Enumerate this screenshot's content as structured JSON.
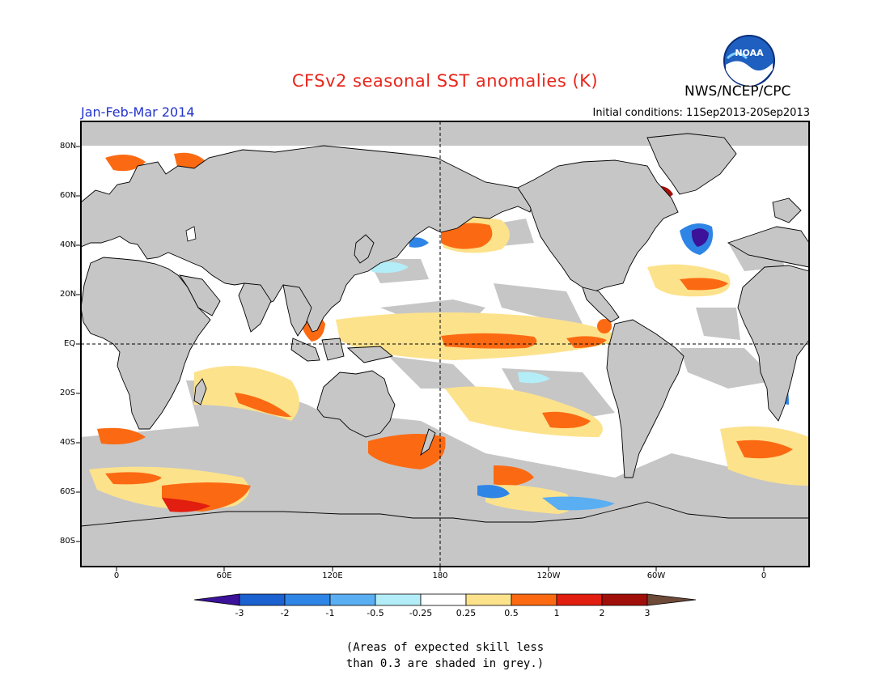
{
  "header": {
    "title": "CFSv2 seasonal SST anomalies (K)",
    "organization": "NWS/NCEP/CPC",
    "logo_text": "NOAA",
    "period": "Jan-Feb-Mar 2014",
    "initial_conditions": "Initial conditions: 11Sep2013-20Sep2013"
  },
  "map": {
    "lat_labels": [
      "80N",
      "60N",
      "40N",
      "20N",
      "EQ",
      "20S",
      "40S",
      "60S",
      "80S"
    ],
    "lon_labels": [
      "0",
      "60E",
      "120E",
      "180",
      "120W",
      "60W",
      "0"
    ],
    "colors": {
      "land": "#c6c6c6",
      "ocean": "#ffffff",
      "low_skill": "#c6c6c6",
      "coast": "#000000"
    }
  },
  "colorbar": {
    "tick_labels": [
      "-3",
      "-2",
      "-1",
      "-0.5",
      "-0.25",
      "0.25",
      "0.5",
      "1",
      "2",
      "3"
    ],
    "colors": [
      "#3b1299",
      "#1b61cf",
      "#2f85e6",
      "#5aaef2",
      "#b3eef8",
      "#ffffff",
      "#fde28c",
      "#fb6a12",
      "#e11e0f",
      "#a10f0a",
      "#6e4a38"
    ]
  },
  "footnote": {
    "line1": "(Areas of expected skill less",
    "line2": "than 0.3 are shaded in grey.)"
  }
}
